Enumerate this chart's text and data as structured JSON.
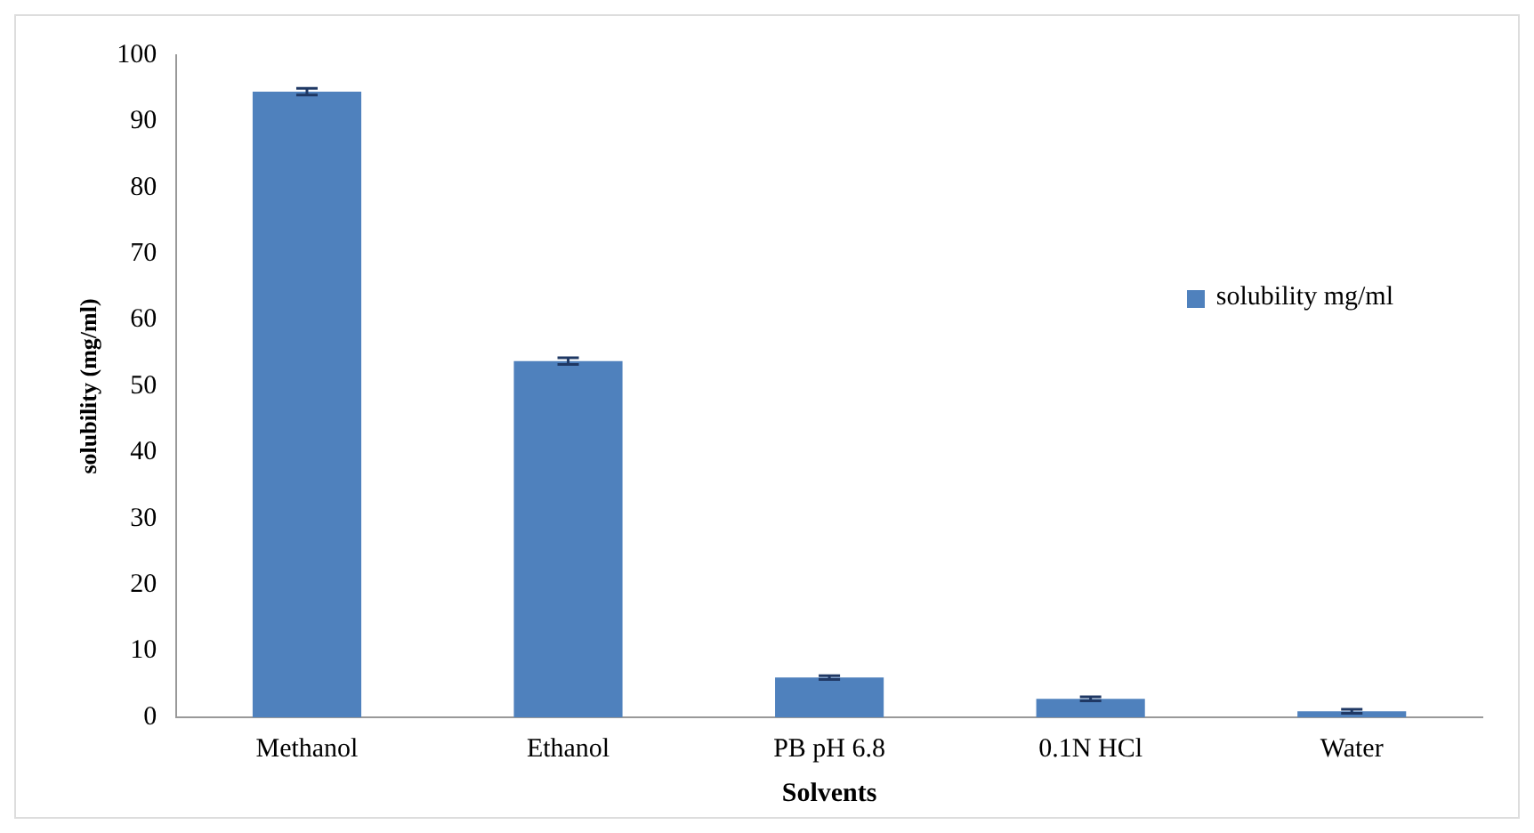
{
  "chart_data": {
    "type": "bar",
    "xlabel": "Solvents",
    "ylabel": "solubility (mg/ml)",
    "categories": [
      "Methanol",
      "Ethanol",
      "PB pH 6.8",
      "0.1N HCl",
      "Water"
    ],
    "series": [
      {
        "name": "solubility mg/ml",
        "color": "#4f81bd",
        "values": [
          94.5,
          53.8,
          6,
          2.8,
          0.9
        ],
        "errors": [
          0.5,
          0.5,
          0.3,
          0.3,
          0.3
        ]
      }
    ],
    "ylim": [
      0,
      100
    ],
    "yticks": [
      0,
      10,
      20,
      30,
      40,
      50,
      60,
      70,
      80,
      90,
      100
    ],
    "grid": false,
    "legend": "right"
  }
}
